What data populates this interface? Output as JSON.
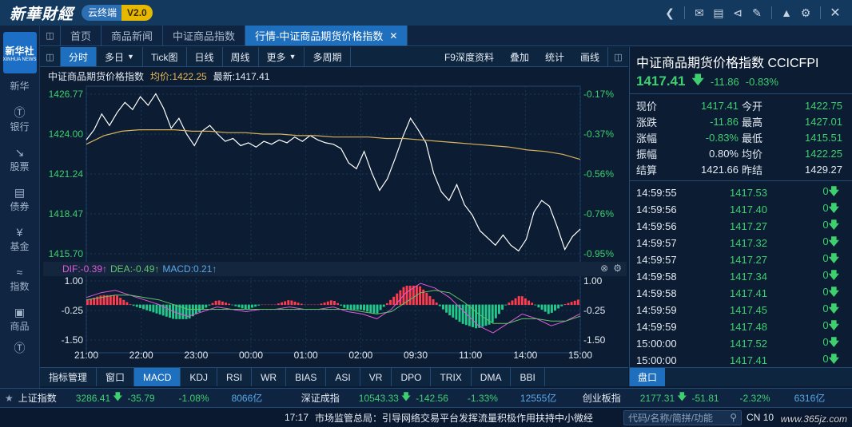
{
  "app": {
    "logo": "新華財經",
    "badge_cloud": "云终端",
    "badge_version": "V2.0"
  },
  "nav": {
    "logo_line1": "新华社",
    "logo_line2": "XINHUA NEWS",
    "items": [
      "新华",
      "银行",
      "股票",
      "债券",
      "基金",
      "指数",
      "商品"
    ]
  },
  "tabs": [
    "首页",
    "商品新闻",
    "中证商品指数",
    "行情-中证商品期货价格指数"
  ],
  "toolbar": {
    "left": [
      "分时",
      "多日",
      "Tick图",
      "日线",
      "周线",
      "更多",
      "多周期"
    ],
    "right": [
      "F9深度资料",
      "叠加",
      "统计",
      "画线"
    ]
  },
  "chart_header": {
    "name": "中证商品期货价格指数",
    "avg": "均价:1422.25",
    "last": "最新:1417.41"
  },
  "macd_header": {
    "dif": "DIF:-0.39↑",
    "dea": "DEA:-0.49↑",
    "macd": "MACD:0.21↑"
  },
  "chart_data": [
    {
      "type": "line",
      "title": "中证商品期货价格指数",
      "x_ticks": [
        "21:00",
        "22:00",
        "23:00",
        "00:00",
        "01:00",
        "02:00",
        "09:30",
        "11:00",
        "14:00",
        "15:00"
      ],
      "y_ticks_left": [
        "1426.77",
        "1424.00",
        "1421.24",
        "1418.47",
        "1415.70"
      ],
      "y_ticks_right": [
        "-0.17%",
        "-0.37%",
        "-0.56%",
        "-0.76%",
        "-0.95%"
      ],
      "ylim": [
        1415.7,
        1426.77
      ],
      "series": [
        {
          "name": "最新",
          "color": "#ffffff",
          "values": [
            1423.6,
            1424.3,
            1425.4,
            1424.6,
            1425.5,
            1426.2,
            1425.7,
            1426.6,
            1426.0,
            1426.8,
            1425.8,
            1424.4,
            1425.1,
            1424.0,
            1423.2,
            1424.2,
            1424.6,
            1424.0,
            1423.5,
            1423.7,
            1423.2,
            1423.4,
            1423.1,
            1423.5,
            1423.3,
            1423.6,
            1423.4,
            1423.8,
            1423.5,
            1423.9,
            1423.6,
            1423.4,
            1423.3,
            1423.0,
            1422.0,
            1421.6,
            1422.8,
            1421.3,
            1420.1,
            1420.9,
            1422.3,
            1423.8,
            1425.1,
            1424.3,
            1423.4,
            1421.3,
            1420.0,
            1419.4,
            1420.5,
            1419.1,
            1418.4,
            1417.3,
            1416.8,
            1416.3,
            1417.0,
            1416.3,
            1415.9,
            1416.7,
            1418.6,
            1419.4,
            1419.0,
            1417.6,
            1416.0,
            1416.9,
            1417.41
          ]
        },
        {
          "name": "均价",
          "color": "#d9b45a",
          "values": [
            1423.3,
            1423.9,
            1424.2,
            1424.3,
            1424.3,
            1424.3,
            1424.2,
            1424.2,
            1424.1,
            1424.1,
            1424.0,
            1424.0,
            1423.9,
            1423.9,
            1423.8,
            1423.8,
            1423.8,
            1423.7,
            1423.7,
            1423.6,
            1423.5,
            1423.4,
            1423.3,
            1423.2,
            1423.1,
            1422.9,
            1422.8,
            1422.6,
            1422.25
          ]
        }
      ]
    },
    {
      "type": "bar",
      "title": "MACD",
      "y_ticks": [
        "1.00",
        "-0.25",
        "-1.50"
      ],
      "ylim": [
        -1.5,
        1.0
      ],
      "series": [
        {
          "name": "DIF",
          "color": "#e05adb",
          "values": [
            0.3,
            0.5,
            0.6,
            0.4,
            0.2,
            0.0,
            -0.3,
            -0.5,
            -0.3,
            -0.1,
            -0.2,
            -0.3,
            -0.2,
            -0.2,
            -0.1,
            -0.2,
            -0.2,
            -0.1,
            -0.3,
            -0.4,
            -0.6,
            -0.2,
            0.5,
            0.9,
            0.7,
            0.3,
            -0.3,
            -0.9,
            -1.2,
            -0.8,
            -0.4,
            -0.6,
            -0.9,
            -0.7,
            -0.39
          ]
        },
        {
          "name": "DEA",
          "color": "#63c36b",
          "values": [
            0.2,
            0.3,
            0.4,
            0.4,
            0.3,
            0.2,
            0.0,
            -0.2,
            -0.2,
            -0.2,
            -0.2,
            -0.2,
            -0.2,
            -0.2,
            -0.2,
            -0.2,
            -0.2,
            -0.2,
            -0.2,
            -0.3,
            -0.4,
            -0.3,
            0.1,
            0.5,
            0.6,
            0.5,
            0.1,
            -0.4,
            -0.8,
            -0.8,
            -0.6,
            -0.6,
            -0.7,
            -0.7,
            -0.49
          ]
        },
        {
          "name": "MACD",
          "values": [
            0.2,
            0.4,
            0.4,
            0.0,
            -0.2,
            -0.4,
            -0.6,
            -0.6,
            -0.2,
            0.2,
            0.0,
            -0.2,
            0.0,
            0.0,
            0.2,
            0.0,
            0.0,
            0.2,
            -0.2,
            -0.2,
            -0.4,
            0.2,
            0.8,
            0.8,
            0.2,
            -0.4,
            -0.8,
            -1.0,
            -0.8,
            0.0,
            0.4,
            0.0,
            -0.4,
            0.0,
            0.21
          ]
        }
      ]
    }
  ],
  "quote": {
    "title": "中证商品期货价格指数  CCICFPI",
    "price": "1417.41",
    "change": "-11.86",
    "change_pct": "-0.83%",
    "rows": [
      {
        "l1": "现价",
        "v1": "1417.41",
        "c1": "g",
        "l2": "今开",
        "v2": "1422.75",
        "c2": "g"
      },
      {
        "l1": "涨跌",
        "v1": "-11.86",
        "c1": "g",
        "l2": "最高",
        "v2": "1427.01",
        "c2": "g"
      },
      {
        "l1": "涨幅",
        "v1": "-0.83%",
        "c1": "g",
        "l2": "最低",
        "v2": "1415.51",
        "c2": "g"
      },
      {
        "l1": "振幅",
        "v1": "0.80%",
        "c1": "w",
        "l2": "均价",
        "v2": "1422.25",
        "c2": "g"
      },
      {
        "l1": "结算",
        "v1": "1421.66",
        "c1": "w",
        "l2": "昨结",
        "v2": "1429.27",
        "c2": "w"
      }
    ],
    "ticks": [
      {
        "time": "14:59:55",
        "price": "1417.53",
        "vol": "0"
      },
      {
        "time": "14:59:56",
        "price": "1417.40",
        "vol": "0"
      },
      {
        "time": "14:59:56",
        "price": "1417.27",
        "vol": "0"
      },
      {
        "time": "14:59:57",
        "price": "1417.32",
        "vol": "0"
      },
      {
        "time": "14:59:57",
        "price": "1417.27",
        "vol": "0"
      },
      {
        "time": "14:59:58",
        "price": "1417.34",
        "vol": "0"
      },
      {
        "time": "14:59:58",
        "price": "1417.41",
        "vol": "0"
      },
      {
        "time": "14:59:59",
        "price": "1417.45",
        "vol": "0"
      },
      {
        "time": "14:59:59",
        "price": "1417.48",
        "vol": "0"
      },
      {
        "time": "15:00:00",
        "price": "1417.52",
        "vol": "0"
      },
      {
        "time": "15:00:00",
        "price": "1417.41",
        "vol": "0"
      }
    ],
    "tab": "盘口"
  },
  "indicators": [
    "指标管理",
    "窗口",
    "MACD",
    "KDJ",
    "RSI",
    "WR",
    "BIAS",
    "ASI",
    "VR",
    "DPO",
    "TRIX",
    "DMA",
    "BBI"
  ],
  "indices": [
    {
      "name": "上证指数",
      "value": "3286.41",
      "change": "-35.79",
      "pct": "-1.08%",
      "amount": "8066亿"
    },
    {
      "name": "深证成指",
      "value": "10543.33",
      "change": "-142.56",
      "pct": "-1.33%",
      "amount": "12555亿"
    },
    {
      "name": "创业板指",
      "value": "2177.31",
      "change": "-51.81",
      "pct": "-2.32%",
      "amount": "6316亿"
    }
  ],
  "status": {
    "time": "17:17",
    "news": "市场监管总局：引导网络交易平台发挥流量积极作用扶持中小微经",
    "search_placeholder": "代码/名称/简拼/功能",
    "cn_label": "CN 10",
    "watermark": "www.365jz.com"
  },
  "colors": {
    "up": "#ff3b4e",
    "down": "#3ecf6f",
    "accent": "#1f6fbf",
    "avg_line": "#d9b45a"
  }
}
